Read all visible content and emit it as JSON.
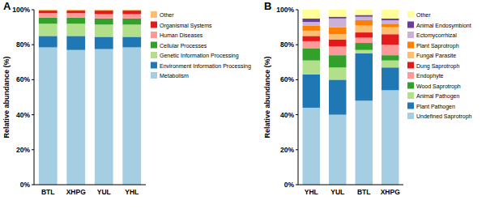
{
  "chart_data": [
    {
      "type": "bar",
      "stacked": true,
      "title": "A",
      "y_label": "Relative abundance (%)",
      "categories": [
        "BTL",
        "XHPG",
        "YUL",
        "YHL"
      ],
      "ylim": [
        0,
        100
      ],
      "yticks": [
        {
          "value": 0,
          "label": "0%"
        },
        {
          "value": 20,
          "label": "20%"
        },
        {
          "value": 40,
          "label": "40%"
        },
        {
          "value": 60,
          "label": "60%"
        },
        {
          "value": 80,
          "label": "80%"
        },
        {
          "value": 100,
          "label": "100%"
        }
      ],
      "grid": false,
      "legend": "right",
      "series": [
        {
          "name": "Metabolism",
          "color": "#a6cee3",
          "values": [
            78.5,
            77,
            77.5,
            78.5
          ]
        },
        {
          "name": "Environment Information Processing",
          "color": "#1f78b4",
          "values": [
            6.5,
            8,
            7,
            6
          ]
        },
        {
          "name": "Genetic Information Processing",
          "color": "#b2df8a",
          "values": [
            7,
            7,
            7,
            7
          ]
        },
        {
          "name": "Cellular Processes",
          "color": "#33a02c",
          "values": [
            3.5,
            3.5,
            3.5,
            3.5
          ]
        },
        {
          "name": "Human Diseases",
          "color": "#fb9a99",
          "values": [
            2.5,
            2.5,
            2.5,
            2.5
          ]
        },
        {
          "name": "Organismal Systems",
          "color": "#e31a1c",
          "values": [
            1.5,
            1.5,
            2,
            2
          ]
        },
        {
          "name": "Other",
          "color": "#fdbf6f",
          "values": [
            0.5,
            0.5,
            0.5,
            0.5
          ]
        }
      ]
    },
    {
      "type": "bar",
      "stacked": true,
      "title": "B",
      "y_label": "Relative abundance (%)",
      "categories": [
        "YHL",
        "YUL",
        "BTL",
        "XHPG"
      ],
      "ylim": [
        0,
        100
      ],
      "yticks": [
        {
          "value": 0,
          "label": "0%"
        },
        {
          "value": 20,
          "label": "20%"
        },
        {
          "value": 40,
          "label": "40%"
        },
        {
          "value": 60,
          "label": "60%"
        },
        {
          "value": 80,
          "label": "80%"
        },
        {
          "value": 100,
          "label": "100%"
        }
      ],
      "grid": false,
      "legend": "right",
      "series": [
        {
          "name": "Undefined Saprotroph",
          "color": "#a6cee3",
          "values": [
            44,
            40,
            48,
            54
          ]
        },
        {
          "name": "Plant Pathogen",
          "color": "#1f78b4",
          "values": [
            19,
            20,
            27,
            13
          ]
        },
        {
          "name": "Animal Pathogen",
          "color": "#b2df8a",
          "values": [
            8,
            7,
            2,
            4
          ]
        },
        {
          "name": "Wood Saprotroph",
          "color": "#33a02c",
          "values": [
            7,
            7,
            4,
            3
          ]
        },
        {
          "name": "Endophyte",
          "color": "#fb9a99",
          "values": [
            4,
            5,
            3,
            6
          ]
        },
        {
          "name": "Dung Saprotroph",
          "color": "#e31a1c",
          "values": [
            3,
            4,
            3,
            6
          ]
        },
        {
          "name": "Fungal Parasite",
          "color": "#fdbf6f",
          "values": [
            3,
            3,
            4,
            4
          ]
        },
        {
          "name": "Plant Saprotroph",
          "color": "#ff7f00",
          "values": [
            3,
            4,
            3,
            2
          ]
        },
        {
          "name": "Ectomycorrhizal",
          "color": "#cab2d6",
          "values": [
            2,
            5,
            2,
            2
          ]
        },
        {
          "name": "Animal Endosymbiont",
          "color": "#6a3d9a",
          "values": [
            2,
            1,
            1,
            1
          ]
        },
        {
          "name": "Other",
          "color": "#ffff99",
          "values": [
            5,
            4,
            3,
            5
          ]
        }
      ]
    }
  ]
}
